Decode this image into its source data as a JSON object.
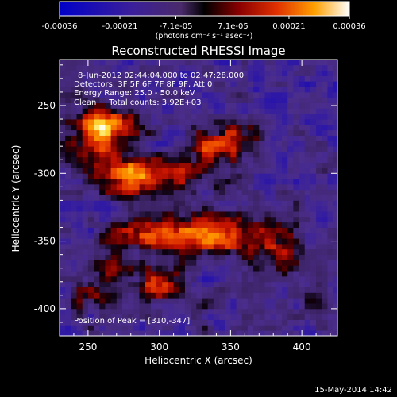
{
  "chart_data": {
    "type": "heatmap",
    "title": "Reconstructed RHESSI Image",
    "xlabel": "Heliocentric X (arcsec)",
    "ylabel": "Heliocentric Y (arcsec)",
    "xlim": [
      230,
      425
    ],
    "ylim": [
      -420,
      -216
    ],
    "x_ticks": [
      250,
      300,
      350,
      400
    ],
    "y_ticks": [
      -250,
      -300,
      -350,
      -400
    ],
    "colorbar": {
      "ticks": [
        "-0.00036",
        "-0.00021",
        "-7.1e-05",
        "7.1e-05",
        "0.00021",
        "0.00036"
      ],
      "unit_label": "(photons cm⁻² s⁻¹ asec⁻²)",
      "range": [
        -0.00036,
        0.00036
      ]
    },
    "annotations": [
      "8-Jun-2012 02:44:04.000 to 02:47:28.000",
      "Detectors: 3F 5F 6F 7F 8F 9F, Att 0",
      "Energy Range: 25.0 - 50.0 keV",
      "Clean     Total counts: 3.92E+03"
    ],
    "peak_label": "Position of Peak = [310,-347]",
    "peak": [
      310,
      -347
    ],
    "sources": [
      {
        "x": 255,
        "y": -275,
        "sx": 14,
        "sy": 16,
        "amp": 0.0003
      },
      {
        "x": 272,
        "y": -265,
        "sx": 12,
        "sy": 8,
        "amp": 0.0002
      },
      {
        "x": 280,
        "y": -302,
        "sx": 14,
        "sy": 9,
        "amp": 0.00032
      },
      {
        "x": 315,
        "y": -300,
        "sx": 18,
        "sy": 8,
        "amp": 0.00018
      },
      {
        "x": 340,
        "y": -280,
        "sx": 16,
        "sy": 10,
        "amp": 0.0002
      },
      {
        "x": 360,
        "y": -270,
        "sx": 10,
        "sy": 8,
        "amp": 0.00012
      },
      {
        "x": 300,
        "y": -345,
        "sx": 22,
        "sy": 8,
        "amp": 0.0003
      },
      {
        "x": 345,
        "y": -345,
        "sx": 20,
        "sy": 12,
        "amp": 0.00024
      },
      {
        "x": 380,
        "y": -355,
        "sx": 16,
        "sy": 14,
        "amp": 0.00018
      },
      {
        "x": 265,
        "y": -375,
        "sx": 10,
        "sy": 14,
        "amp": 0.00018
      },
      {
        "x": 300,
        "y": -380,
        "sx": 10,
        "sy": 10,
        "amp": 0.0003
      },
      {
        "x": 410,
        "y": -395,
        "sx": 8,
        "sy": 8,
        "amp": 0.00016
      },
      {
        "x": 250,
        "y": -395,
        "sx": 12,
        "sy": 8,
        "amp": 0.0001
      },
      {
        "x": 330,
        "y": -398,
        "sx": 10,
        "sy": 8,
        "amp": 8e-05
      }
    ]
  },
  "footer": {
    "timestamp": "15-May-2014 14:42"
  }
}
